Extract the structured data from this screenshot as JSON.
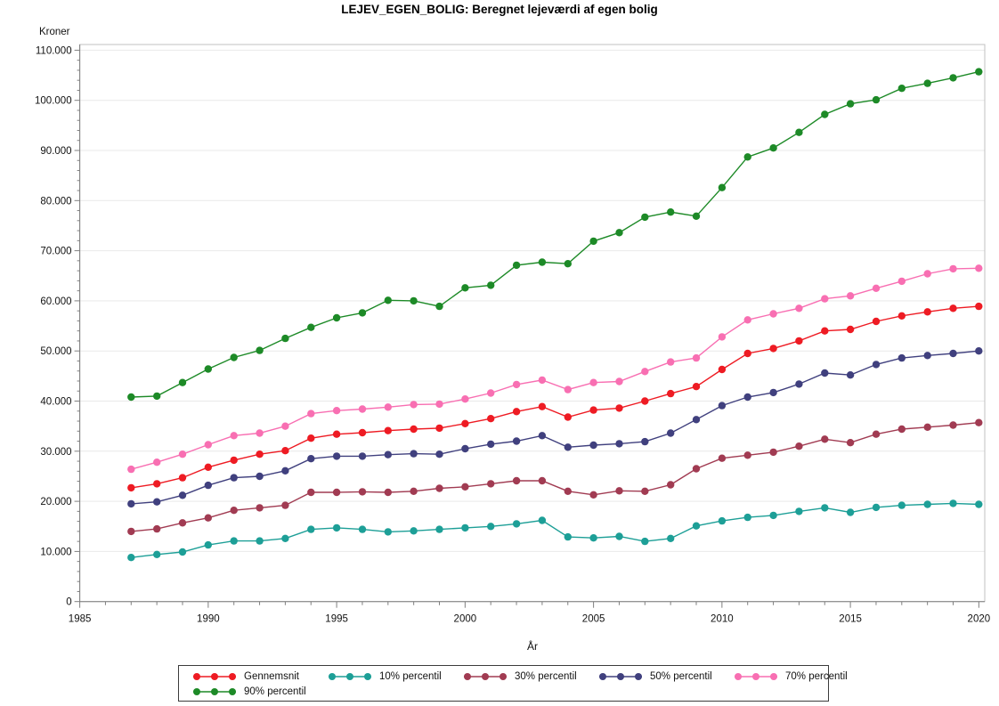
{
  "title": "LEJEV_EGEN_BOLIG: Beregnet lejeværdi af egen bolig",
  "y_axis": {
    "label": "Kroner",
    "tick_labels": [
      "0",
      "10.000",
      "20.000",
      "30.000",
      "40.000",
      "50.000",
      "60.000",
      "70.000",
      "80.000",
      "90.000",
      "100.000",
      "110.000"
    ],
    "min": 0,
    "max": 110000,
    "major_step": 10000,
    "minor_step": 2000
  },
  "x_axis": {
    "label": "År",
    "tick_labels": [
      "1985",
      "1990",
      "1995",
      "2000",
      "2005",
      "2010",
      "2015",
      "2020"
    ],
    "min": 1985,
    "max": 2020,
    "major_step": 5,
    "minor_step": 1
  },
  "legend": {
    "entries": [
      {
        "label": "Gennemsnit",
        "color": "#ee1b23"
      },
      {
        "label": "10% percentil",
        "color": "#1d9f97"
      },
      {
        "label": "30% percentil",
        "color": "#a13b52"
      },
      {
        "label": "50% percentil",
        "color": "#40407e"
      },
      {
        "label": "70% percentil",
        "color": "#f86fb2"
      },
      {
        "label": "90% percentil",
        "color": "#1d8a27"
      }
    ]
  },
  "chart_data": {
    "type": "line",
    "title": "LEJEV_EGEN_BOLIG: Beregnet lejeværdi af egen bolig",
    "xlabel": "År",
    "ylabel": "Kroner",
    "xlim": [
      1985,
      2020
    ],
    "ylim": [
      0,
      110000
    ],
    "grid": "horizontal-major",
    "legend_position": "bottom",
    "x": [
      1987,
      1988,
      1989,
      1990,
      1991,
      1992,
      1993,
      1994,
      1995,
      1996,
      1997,
      1998,
      1999,
      2000,
      2001,
      2002,
      2003,
      2004,
      2005,
      2006,
      2007,
      2008,
      2009,
      2010,
      2011,
      2012,
      2013,
      2014,
      2015,
      2016,
      2017,
      2018,
      2019,
      2020
    ],
    "series": [
      {
        "name": "Gennemsnit",
        "color": "#ee1b23",
        "values": [
          22700,
          23500,
          24700,
          26800,
          28200,
          29400,
          30100,
          32600,
          33400,
          33700,
          34100,
          34400,
          34600,
          35500,
          36500,
          37900,
          38900,
          36800,
          38200,
          38600,
          40000,
          41500,
          42900,
          46300,
          49500,
          50500,
          52000,
          54000,
          54300,
          55900,
          57000,
          57800,
          58500,
          58900
        ]
      },
      {
        "name": "10% percentil",
        "color": "#1d9f97",
        "values": [
          8800,
          9400,
          9900,
          11300,
          12100,
          12100,
          12600,
          14400,
          14700,
          14400,
          13900,
          14100,
          14400,
          14700,
          15000,
          15500,
          16200,
          12900,
          12700,
          13000,
          12000,
          12600,
          15100,
          16100,
          16800,
          17200,
          18000,
          18700,
          17800,
          18800,
          19200,
          19400,
          19600,
          19400
        ]
      },
      {
        "name": "30% percentil",
        "color": "#a13b52",
        "values": [
          14000,
          14500,
          15700,
          16700,
          18200,
          18700,
          19200,
          21800,
          21800,
          21900,
          21800,
          22000,
          22600,
          22900,
          23500,
          24100,
          24100,
          22000,
          21300,
          22100,
          22000,
          23300,
          26500,
          28600,
          29200,
          29800,
          31000,
          32400,
          31700,
          33400,
          34400,
          34800,
          35200,
          35700
        ]
      },
      {
        "name": "50% percentil",
        "color": "#40407e",
        "values": [
          19500,
          19900,
          21200,
          23200,
          24700,
          25000,
          26100,
          28500,
          29000,
          29000,
          29300,
          29500,
          29400,
          30500,
          31400,
          32000,
          33100,
          30800,
          31200,
          31500,
          31900,
          33600,
          36300,
          39100,
          40800,
          41700,
          43400,
          45600,
          45200,
          47300,
          48600,
          49100,
          49500,
          50000
        ]
      },
      {
        "name": "70% percentil",
        "color": "#f86fb2",
        "values": [
          26400,
          27800,
          29400,
          31300,
          33100,
          33600,
          35000,
          37500,
          38100,
          38400,
          38800,
          39300,
          39400,
          40400,
          41600,
          43300,
          44200,
          42300,
          43700,
          43900,
          45900,
          47800,
          48600,
          52800,
          56200,
          57400,
          58500,
          60400,
          61000,
          62500,
          63900,
          65400,
          66400,
          66500
        ]
      },
      {
        "name": "90% percentil",
        "color": "#1d8a27",
        "values": [
          40800,
          41000,
          43700,
          46400,
          48700,
          50100,
          52500,
          54700,
          56600,
          57600,
          60100,
          60000,
          58900,
          62600,
          63100,
          67100,
          67700,
          67400,
          71900,
          73600,
          76700,
          77700,
          76900,
          82600,
          88700,
          90500,
          93600,
          97200,
          99300,
          100100,
          102400,
          103400,
          104500,
          105700
        ]
      }
    ]
  }
}
